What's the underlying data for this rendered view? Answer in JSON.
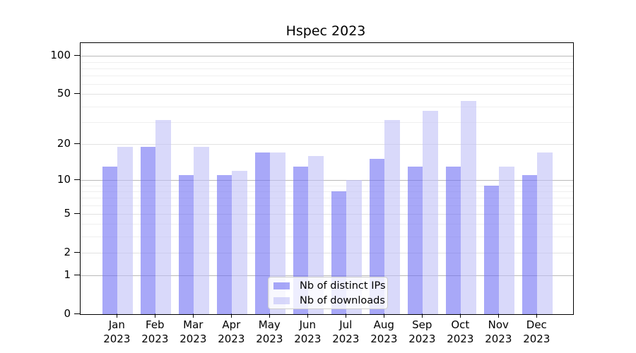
{
  "chart_data": {
    "type": "bar",
    "title": "Hspec 2023",
    "year_label": "2023",
    "categories": [
      "Jan",
      "Feb",
      "Mar",
      "Apr",
      "May",
      "Jun",
      "Jul",
      "Aug",
      "Sep",
      "Oct",
      "Nov",
      "Dec"
    ],
    "series": [
      {
        "name": "Nb of distinct IPs",
        "color": "#6e6ef3",
        "alpha": 0.6,
        "values": [
          13,
          19,
          11,
          11,
          17,
          13,
          8,
          15,
          13,
          13,
          9,
          11
        ]
      },
      {
        "name": "Nb of downloads",
        "color": "#c0c0f7",
        "alpha": 0.6,
        "values": [
          19,
          31,
          19,
          12,
          17,
          16,
          10,
          31,
          37,
          44,
          13,
          17
        ]
      }
    ],
    "yticks": [
      100,
      50,
      20,
      10,
      5,
      2,
      1,
      0
    ],
    "yscale": "log1p",
    "ylim": [
      0,
      126
    ],
    "xlabel": "",
    "ylabel": "",
    "grid": true,
    "legend_position": "bottom-center"
  }
}
